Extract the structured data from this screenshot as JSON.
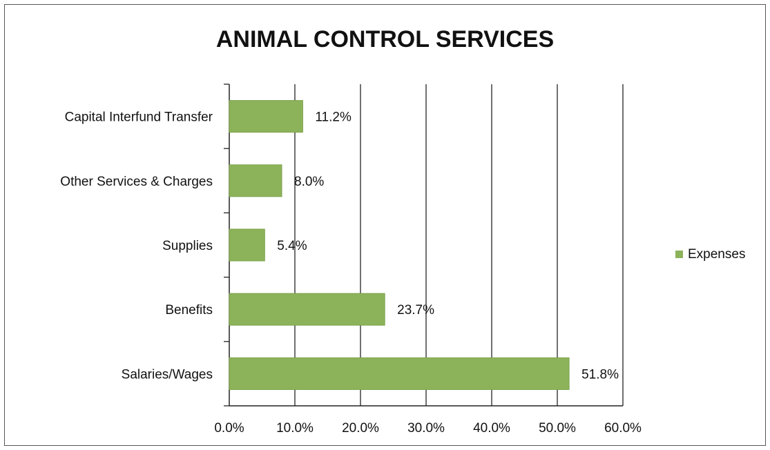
{
  "chart_data": {
    "type": "bar",
    "orientation": "horizontal",
    "title": "ANIMAL CONTROL SERVICES",
    "categories": [
      "Capital Interfund Transfer",
      "Other Services & Charges",
      "Supplies",
      "Benefits",
      "Salaries/Wages"
    ],
    "series": [
      {
        "name": "Expenses",
        "values": [
          11.2,
          8.0,
          5.4,
          23.7,
          51.8
        ],
        "value_labels": [
          "11.2%",
          "8.0%",
          "5.4%",
          "23.7%",
          "51.8%"
        ],
        "color": "#8db35a"
      }
    ],
    "xlim": [
      0,
      60
    ],
    "xticks": [
      0,
      10,
      20,
      30,
      40,
      50,
      60
    ],
    "xtick_labels": [
      "0.0%",
      "10.0%",
      "20.0%",
      "30.0%",
      "40.0%",
      "50.0%",
      "60.0%"
    ],
    "xlabel": "",
    "ylabel": "",
    "grid": "vertical major gridlines",
    "legend_position": "right"
  }
}
